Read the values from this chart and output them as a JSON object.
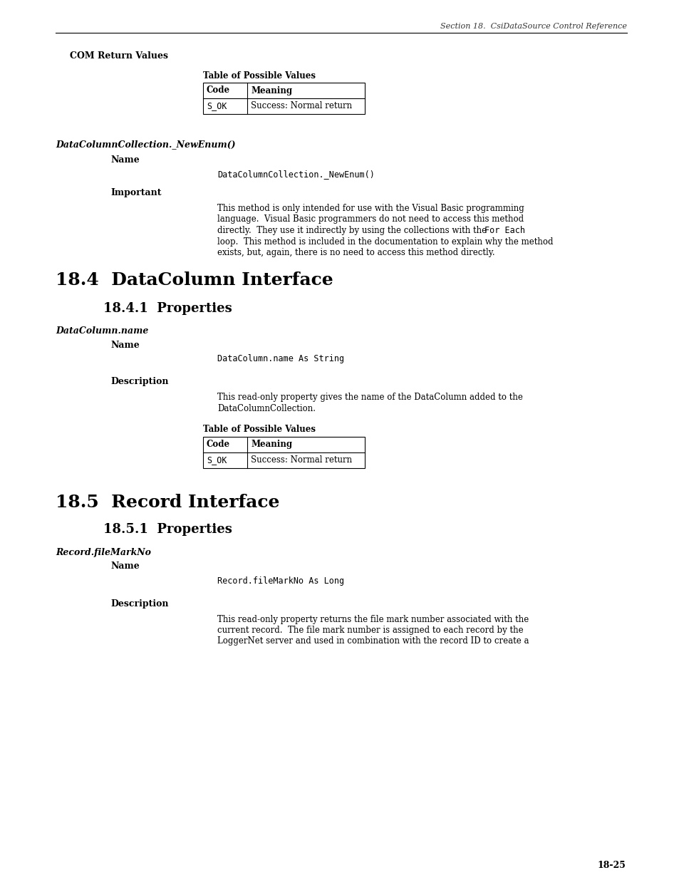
{
  "page_bg": "#ffffff",
  "header_text": "Section 18.  CsiDataSource Control Reference",
  "page_number": "18-25",
  "com_return_values_label": "COM Return Values",
  "table1_title": "Table of Possible Values",
  "table1_headers": [
    "Code",
    "Meaning"
  ],
  "table1_rows": [
    [
      "S_OK",
      "Success: Normal return"
    ]
  ],
  "section_italic_label1": "DataColumnCollection._NewEnum()",
  "name_label1": "Name",
  "name_code1": "DataColumnCollection._NewEnum()",
  "important_label": "Important",
  "important_lines": [
    "This method is only intended for use with the Visual Basic programming",
    "language.  Visual Basic programmers do not need to access this method",
    [
      "directly.  They use it indirectly by using the collections with the ",
      "For Each"
    ],
    "loop.  This method is included in the documentation to explain why the method",
    "exists, but, again, there is no need to access this method directly."
  ],
  "section_h1_1": "18.4  DataColumn Interface",
  "section_h2_1": "18.4.1  Properties",
  "section_italic_label2": "DataColumn.name",
  "name_label2": "Name",
  "name_code2": "DataColumn.name As String",
  "description_label1": "Description",
  "description_lines1": [
    "This read-only property gives the name of the DataColumn added to the",
    "DataColumnCollection."
  ],
  "table2_title": "Table of Possible Values",
  "table2_headers": [
    "Code",
    "Meaning"
  ],
  "table2_rows": [
    [
      "S_OK",
      "Success: Normal return"
    ]
  ],
  "section_h1_2": "18.5  Record Interface",
  "section_h2_2": "18.5.1  Properties",
  "section_italic_label3": "Record.fileMarkNo",
  "name_label3": "Name",
  "name_code3": "Record.fileMarkNo As Long",
  "description_label2": "Description",
  "description_lines2": [
    "This read-only property returns the file mark number associated with the",
    "current record.  The file mark number is assigned to each record by the",
    "LoggerNet server and used in combination with the record ID to create a"
  ]
}
